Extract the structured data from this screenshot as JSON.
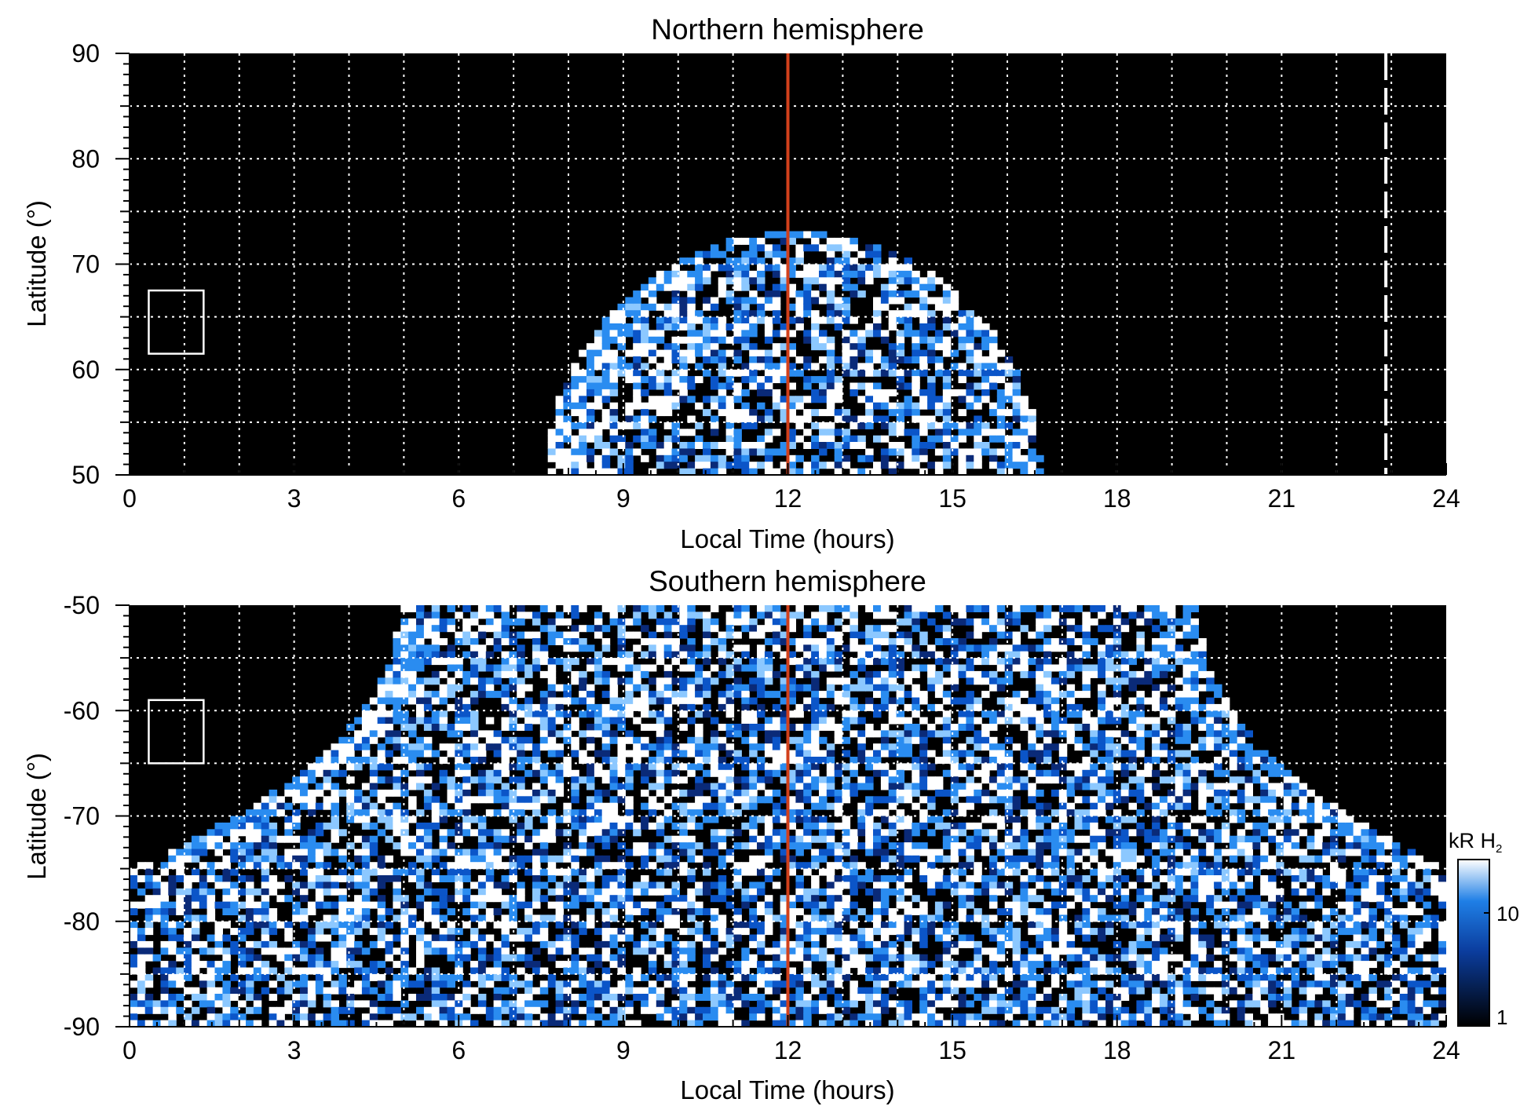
{
  "colors": {
    "background": "#000000",
    "grid": "#ffffff",
    "noon_line": "#d2401b",
    "cmap_low": "#000000",
    "cmap_mid": "#0b55c8",
    "cmap_high": "#ffffff"
  },
  "chart_data": [
    {
      "type": "heatmap",
      "panel": "north",
      "title": "Northern hemisphere",
      "xlabel": "Local Time (hours)",
      "ylabel": "Latitude (°)",
      "xlim": [
        0,
        24
      ],
      "ylim": [
        50,
        90
      ],
      "xticks": [
        "0",
        "3",
        "6",
        "9",
        "12",
        "15",
        "18",
        "21",
        "24"
      ],
      "yticks": [
        "90",
        "80",
        "70",
        "60",
        "50"
      ],
      "grid": true,
      "noon_line_x": 12,
      "dashed_line_x": 22.9,
      "coverage": {
        "center_lt": 12.1,
        "base_halfwidth_lt": 4.5,
        "top_lat": 73,
        "bottom_lat": 50
      },
      "marker_box": {
        "lt": [
          0.35,
          1.35
        ],
        "lat": [
          61.5,
          67.5
        ]
      }
    },
    {
      "type": "heatmap",
      "panel": "south",
      "title": "Southern hemisphere",
      "xlabel": "Local Time (hours)",
      "ylabel": "Latitude (°)",
      "xlim": [
        0,
        24
      ],
      "ylim": [
        -90,
        -50
      ],
      "xticks": [
        "0",
        "3",
        "6",
        "9",
        "12",
        "15",
        "18",
        "21",
        "24"
      ],
      "yticks": [
        "-50",
        "-60",
        "-70",
        "-80",
        "-90"
      ],
      "grid": true,
      "noon_line_x": 12,
      "coverage": {
        "top_left_lt": 4.9,
        "top_right_lt": 19.5,
        "flat_lat": -75
      },
      "marker_box": {
        "lt": [
          0.35,
          1.35
        ],
        "lat": [
          -65,
          -59
        ]
      }
    }
  ],
  "colorbar": {
    "label": "kR H",
    "label_sub": "2",
    "scale": "log",
    "range": [
      1,
      30
    ],
    "ticks": [
      "10",
      "1"
    ]
  }
}
